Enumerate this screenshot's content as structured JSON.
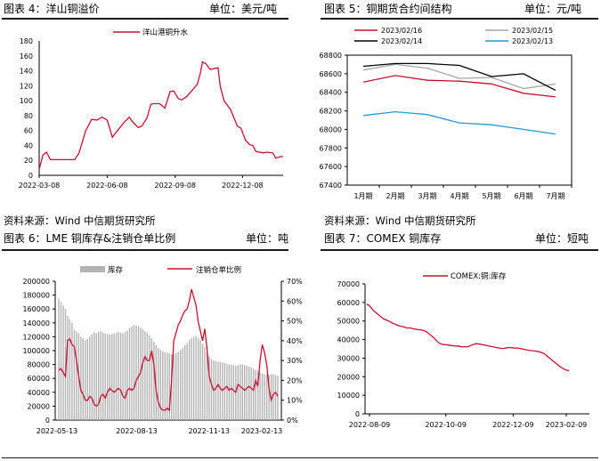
{
  "headers": [
    {
      "title": "图表 4：洋山铜溢价",
      "unit": "单位：美元/吨"
    },
    {
      "title": "图表 5：铜期货合约间结构",
      "unit": "单位：元/吨"
    },
    {
      "title": "图表 6：LME 铜库存&注销仓单比例",
      "unit": "单位：吨"
    },
    {
      "title": "图表 7：COMEX 铜库存",
      "unit": "单位：短吨"
    }
  ],
  "sources": [
    "资料来源：Wind  中信期货研究所",
    "资料来源：Wind  中信期货研究所"
  ],
  "chart_data": [
    {
      "type": "line",
      "title": "图表 4：洋山铜溢价",
      "legend": [
        "洋山港铜升水"
      ],
      "color": "#c8102e",
      "x_ticks": [
        "2022-03-08",
        "2022-06-08",
        "2022-09-08",
        "2022-12-08"
      ],
      "y_ticks": [
        0,
        20,
        40,
        60,
        80,
        100,
        120,
        140,
        160,
        180
      ],
      "ylim": [
        0,
        180
      ],
      "series": [
        {
          "name": "洋山港铜升水",
          "points": [
            [
              "2022-03-08",
              8
            ],
            [
              "2022-03-13",
              27
            ],
            [
              "2022-03-18",
              31
            ],
            [
              "2022-03-23",
              21
            ],
            [
              "2022-04-10",
              21
            ],
            [
              "2022-04-25",
              21
            ],
            [
              "2022-05-01",
              30
            ],
            [
              "2022-05-10",
              60
            ],
            [
              "2022-05-18",
              75
            ],
            [
              "2022-05-25",
              74
            ],
            [
              "2022-06-01",
              78
            ],
            [
              "2022-06-08",
              74
            ],
            [
              "2022-06-15",
              51
            ],
            [
              "2022-06-22",
              60
            ],
            [
              "2022-06-30",
              70
            ],
            [
              "2022-07-08",
              78
            ],
            [
              "2022-07-12",
              72
            ],
            [
              "2022-07-20",
              64
            ],
            [
              "2022-07-25",
              66
            ],
            [
              "2022-08-01",
              77
            ],
            [
              "2022-08-06",
              95
            ],
            [
              "2022-08-10",
              96
            ],
            [
              "2022-08-18",
              96
            ],
            [
              "2022-08-25",
              90
            ],
            [
              "2022-09-01",
              112
            ],
            [
              "2022-09-06",
              113
            ],
            [
              "2022-09-12",
              103
            ],
            [
              "2022-09-17",
              101
            ],
            [
              "2022-09-24",
              106
            ],
            [
              "2022-10-01",
              114
            ],
            [
              "2022-10-08",
              122
            ],
            [
              "2022-10-12",
              137
            ],
            [
              "2022-10-15",
              152
            ],
            [
              "2022-10-20",
              149
            ],
            [
              "2022-10-25",
              142
            ],
            [
              "2022-11-05",
              144
            ],
            [
              "2022-11-08",
              119
            ],
            [
              "2022-11-13",
              100
            ],
            [
              "2022-11-22",
              88
            ],
            [
              "2022-12-01",
              66
            ],
            [
              "2022-12-06",
              63
            ],
            [
              "2022-12-12",
              47
            ],
            [
              "2022-12-18",
              41
            ],
            [
              "2022-12-22",
              40
            ],
            [
              "2022-12-26",
              32
            ],
            [
              "2023-01-05",
              30
            ],
            [
              "2023-01-10",
              31
            ],
            [
              "2023-01-18",
              30
            ],
            [
              "2023-01-22",
              23
            ],
            [
              "2023-01-28",
              25
            ],
            [
              "2023-02-01",
              25
            ]
          ]
        }
      ]
    },
    {
      "type": "line",
      "title": "图表 5：铜期货合约间结构",
      "categories": [
        "1月期",
        "2月期",
        "3月期",
        "4月期",
        "5月期",
        "6月期",
        "7月期"
      ],
      "y_ticks": [
        67400,
        67600,
        67800,
        68000,
        68200,
        68400,
        68600,
        68800
      ],
      "ylim": [
        67400,
        68800
      ],
      "series": [
        {
          "name": "2023/02/16",
          "color": "#c8102e",
          "values": [
            68510,
            68580,
            68530,
            68520,
            68490,
            68390,
            68350
          ]
        },
        {
          "name": "2023/02/15",
          "color": "#a6a6a6",
          "values": [
            68640,
            68700,
            68660,
            68550,
            68560,
            68440,
            68490
          ]
        },
        {
          "name": "2023/02/14",
          "color": "#000000",
          "values": [
            68680,
            68710,
            68710,
            68690,
            68570,
            68600,
            68420
          ]
        },
        {
          "name": "2023/02/13",
          "color": "#1f9bd8",
          "values": [
            68150,
            68190,
            68160,
            68070,
            68050,
            68000,
            67950
          ]
        }
      ]
    },
    {
      "type": "bar+line",
      "title": "图表 6：LME 铜库存&注销仓单比例",
      "x_ticks": [
        "2022-05-13",
        "2022-08-13",
        "2022-11-13",
        "2023-02-13"
      ],
      "y_ticks_left": [
        0,
        20000,
        40000,
        60000,
        80000,
        100000,
        120000,
        140000,
        160000,
        180000,
        200000
      ],
      "y_ticks_right": [
        "0%",
        "10%",
        "20%",
        "30%",
        "40%",
        "50%",
        "60%",
        "70%"
      ],
      "ylim_left": [
        0,
        200000
      ],
      "ylim_right": [
        0,
        70
      ],
      "legend": [
        "库存",
        "注销仓单比例"
      ],
      "stock_color": "#b3b3b3",
      "ratio_color": "#c8102e",
      "stock_values": [
        175000,
        170000,
        165000,
        160000,
        150000,
        145000,
        140000,
        130000,
        128000,
        125000,
        120000,
        118000,
        115000,
        117000,
        120000,
        124000,
        126000,
        125000,
        127000,
        128000,
        126000,
        125000,
        124000,
        123000,
        124000,
        125000,
        126000,
        127000,
        126000,
        125000,
        127000,
        129000,
        132000,
        135000,
        137000,
        136000,
        135000,
        133000,
        131000,
        128000,
        126000,
        122000,
        118000,
        113000,
        108000,
        104000,
        101000,
        99000,
        98000,
        97000,
        96000,
        95000,
        95000,
        96000,
        98000,
        101000,
        104000,
        108000,
        111000,
        115000,
        118000,
        120000,
        121000,
        118000,
        115000,
        110000,
        105000,
        98000,
        92000,
        88000,
        86000,
        85000,
        84000,
        84000,
        83000,
        82000,
        81000,
        80000,
        80000,
        79000,
        78000,
        79000,
        80000,
        80000,
        79000,
        78000,
        77000,
        76000,
        74000,
        72000,
        70000,
        68000,
        67000,
        66000,
        66000,
        65000,
        66000,
        66000,
        65000,
        64000
      ],
      "ratio_pct": [
        25,
        26,
        24,
        22,
        40,
        41,
        38,
        37,
        30,
        22,
        15,
        13,
        10,
        10,
        12,
        11,
        8,
        7,
        8,
        12,
        13,
        11,
        14,
        16,
        15,
        14,
        15,
        16,
        15,
        12,
        11,
        15,
        16,
        15,
        16,
        20,
        22,
        24,
        29,
        32,
        30,
        30,
        35,
        28,
        15,
        9,
        6,
        5,
        5,
        6,
        5,
        20,
        40,
        44,
        48,
        50,
        53,
        55,
        56,
        60,
        66,
        62,
        58,
        50,
        45,
        40,
        46,
        36,
        22,
        18,
        15,
        16,
        18,
        16,
        15,
        16,
        17,
        15,
        16,
        15,
        14,
        18,
        17,
        16,
        15,
        16,
        17,
        16,
        15,
        20,
        17,
        30,
        38,
        34,
        28,
        16,
        10,
        13,
        14,
        12
      ]
    },
    {
      "type": "line",
      "title": "图表 7：COMEX 铜库存",
      "legend": [
        "COMEX:铜:库存"
      ],
      "color": "#c8102e",
      "x_ticks": [
        "2022-08-09",
        "2022-10-09",
        "2022-12-09",
        "2023-02-09"
      ],
      "y_ticks": [
        0,
        10000,
        20000,
        30000,
        40000,
        50000,
        60000,
        70000
      ],
      "ylim": [
        0,
        70000
      ],
      "values": [
        59000,
        58500,
        57000,
        55500,
        54500,
        53500,
        52500,
        51500,
        50800,
        50300,
        49800,
        49000,
        48500,
        48000,
        47500,
        47200,
        47000,
        46500,
        46200,
        46300,
        46000,
        45700,
        45500,
        45300,
        45200,
        44800,
        44500,
        43500,
        42500,
        41500,
        40300,
        39000,
        38000,
        37500,
        37300,
        37200,
        37000,
        36800,
        36700,
        36500,
        36600,
        36300,
        36100,
        36200,
        36000,
        36300,
        37000,
        37400,
        37800,
        37700,
        37500,
        37200,
        37000,
        36800,
        36500,
        36200,
        36000,
        35700,
        35500,
        35300,
        35200,
        35400,
        35600,
        35700,
        35600,
        35400,
        35500,
        35300,
        35100,
        34800,
        34500,
        34300,
        34100,
        34000,
        33800,
        33600,
        33400,
        33000,
        32500,
        31500,
        30500,
        29500,
        28500,
        27500,
        26500,
        25500,
        24700,
        24000,
        23500,
        23300
      ]
    }
  ]
}
